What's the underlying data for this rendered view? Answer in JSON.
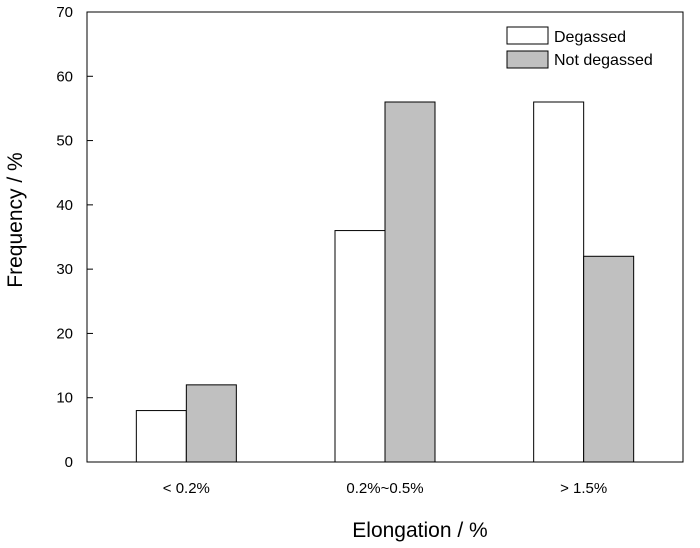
{
  "chart_data": {
    "type": "bar",
    "categories": [
      "< 0.2%",
      "0.2%~0.5%",
      "> 1.5%"
    ],
    "series": [
      {
        "name": "Degassed",
        "values": [
          8,
          36,
          56
        ],
        "color": "#ffffff"
      },
      {
        "name": "Not degassed",
        "values": [
          12,
          56,
          32
        ],
        "color": "#c0c0c0"
      }
    ],
    "xlabel": "Elongation / %",
    "ylabel": "Frequency / %",
    "ylim": [
      0,
      70
    ],
    "yticks": [
      0,
      10,
      20,
      30,
      40,
      50,
      60,
      70
    ],
    "grid": false,
    "legend_position": "top-right"
  }
}
